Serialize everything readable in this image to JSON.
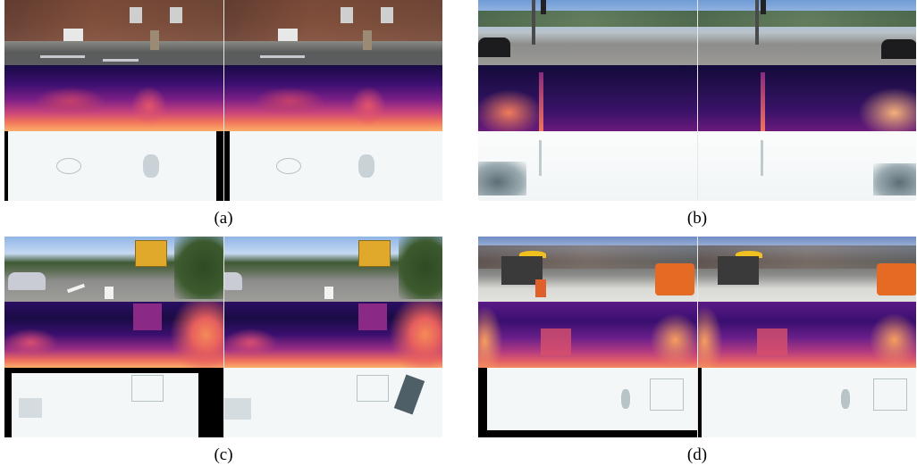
{
  "figure": {
    "panels": [
      {
        "id": "a",
        "caption": "(a)"
      },
      {
        "id": "b",
        "caption": "(b)"
      },
      {
        "id": "c",
        "caption": "(c)"
      },
      {
        "id": "d",
        "caption": "(d)"
      }
    ],
    "row_kinds": [
      "rgb-input",
      "depth-map",
      "confidence-map"
    ],
    "colors": {
      "depth_near": "#fcae6a",
      "depth_mid": "#c9447b",
      "depth_far": "#1a0b45",
      "confidence_bg": "#f4f7f8",
      "invalid_region": "#000000"
    }
  }
}
